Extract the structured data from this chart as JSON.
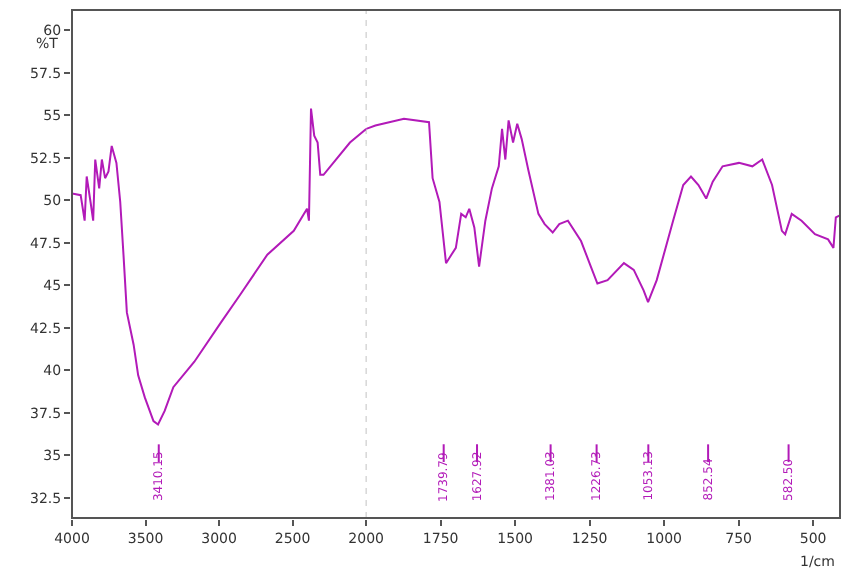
{
  "chart_data": [
    {
      "type": "line",
      "ylabel": "%T",
      "xlim": [
        4000,
        2000
      ],
      "ylim": [
        31.3,
        61.2
      ],
      "xticks": [
        4000,
        3500,
        3000,
        2500
      ],
      "yticks": [
        32.5,
        35,
        37.5,
        40,
        42.5,
        45,
        47.5,
        50,
        52.5,
        55,
        57.5,
        60
      ],
      "grid": false,
      "marker": "none",
      "line_style": "solid",
      "series": [
        {
          "color": "#b21ab8",
          "x": [
            4000,
            3941,
            3914,
            3900,
            3874,
            3856,
            3842,
            3815,
            3797,
            3775,
            3752,
            3730,
            3698,
            3672,
            3650,
            3627,
            3581,
            3550,
            3505,
            3446,
            3415,
            3370,
            3311,
            3168,
            2988,
            2852,
            2672,
            2492,
            2402,
            2389,
            2375,
            2353,
            2330,
            2312,
            2290,
            2110,
            2000
          ],
          "values": [
            50.4,
            50.3,
            48.8,
            51.4,
            49.9,
            48.8,
            52.4,
            50.7,
            52.4,
            51.3,
            51.7,
            53.2,
            52.2,
            49.9,
            46.8,
            43.4,
            41.5,
            39.7,
            38.4,
            37.0,
            36.8,
            37.6,
            39.0,
            40.5,
            42.8,
            44.5,
            46.8,
            48.2,
            49.5,
            48.8,
            55.4,
            53.8,
            53.4,
            51.5,
            51.5,
            53.4,
            54.2
          ]
        }
      ],
      "ref_lines": [
        {
          "axis": "x",
          "value": 3410.15,
          "label": "3410.15"
        }
      ]
    },
    {
      "type": "line",
      "xlabel": "1/cm",
      "xlim": [
        2000,
        410
      ],
      "ylim": [
        31.3,
        61.2
      ],
      "xticks": [
        2000,
        1750,
        1500,
        1250,
        1000,
        750,
        500
      ],
      "yticks": [
        32.5,
        35,
        37.5,
        40,
        42.5,
        45,
        47.5,
        50,
        52.5,
        55,
        57.5,
        60
      ],
      "tick_labels": "x",
      "grid": false,
      "marker": "none",
      "line_style": "solid",
      "series": [
        {
          "color": "#b21ab8",
          "x": [
            2000,
            1969,
            1873,
            1789,
            1777,
            1754,
            1732,
            1714,
            1699,
            1681,
            1666,
            1654,
            1637,
            1621,
            1600,
            1578,
            1555,
            1544,
            1533,
            1522,
            1507,
            1493,
            1478,
            1456,
            1422,
            1401,
            1374,
            1352,
            1323,
            1279,
            1246,
            1224,
            1190,
            1135,
            1102,
            1069,
            1054,
            1025,
            970,
            936,
            910,
            885,
            859,
            837,
            804,
            749,
            704,
            671,
            638,
            605,
            594,
            572,
            539,
            494,
            450,
            432,
            424,
            412
          ],
          "values": [
            54.2,
            54.4,
            54.8,
            54.6,
            51.3,
            49.9,
            46.3,
            46.8,
            47.2,
            49.2,
            49.0,
            49.5,
            48.4,
            46.1,
            48.8,
            50.7,
            52.0,
            54.2,
            52.4,
            54.7,
            53.4,
            54.5,
            53.6,
            51.8,
            49.2,
            48.6,
            48.1,
            48.6,
            48.8,
            47.6,
            46.1,
            45.1,
            45.3,
            46.3,
            45.9,
            44.7,
            44.0,
            45.3,
            48.8,
            50.9,
            51.4,
            50.9,
            50.1,
            51.1,
            52.0,
            52.2,
            52.0,
            52.4,
            50.9,
            48.2,
            48.0,
            49.2,
            48.8,
            48.0,
            47.7,
            47.2,
            49.0,
            49.1
          ]
        }
      ],
      "ref_lines": [
        {
          "axis": "x",
          "value": 1739.79,
          "label": "1739.79"
        },
        {
          "axis": "x",
          "value": 1627.92,
          "label": "1627.92"
        },
        {
          "axis": "x",
          "value": 1381.03,
          "label": "1381.03"
        },
        {
          "axis": "x",
          "value": 1226.73,
          "label": "1226.73"
        },
        {
          "axis": "x",
          "value": 1053.13,
          "label": "1053.13"
        },
        {
          "axis": "x",
          "value": 852.54,
          "label": "852.54"
        },
        {
          "axis": "x",
          "value": 582.5,
          "label": "582.50"
        }
      ]
    }
  ]
}
